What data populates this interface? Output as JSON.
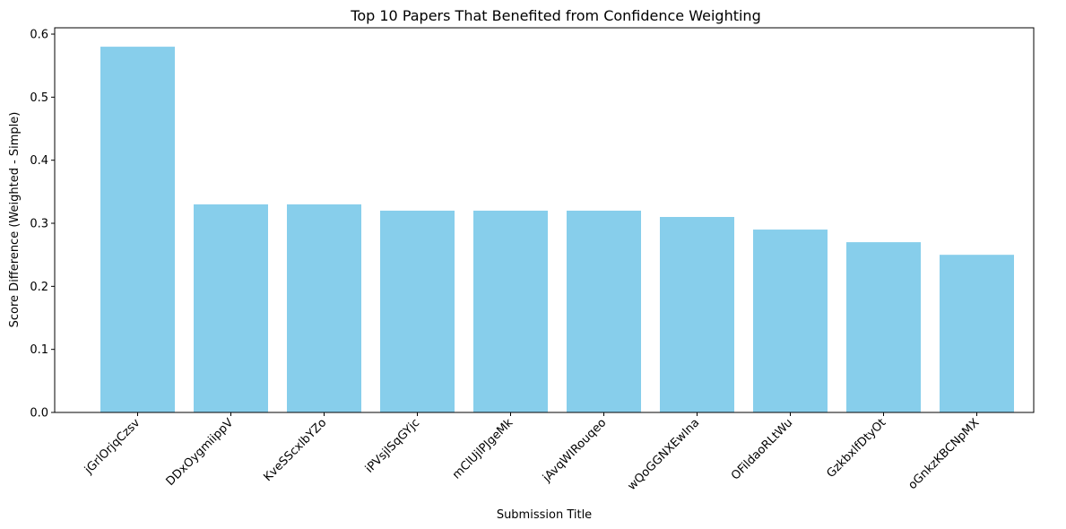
{
  "chart_data": {
    "type": "bar",
    "title": "Top 10 Papers That Benefited from Confidence Weighting",
    "xlabel": "Submission Title",
    "ylabel": "Score Difference (Weighted - Simple)",
    "categories": [
      "jGrlOrjqCzsv",
      "DDxOygmiippV",
      "KveSScxlbYZo",
      "iPVsjlSqGYjc",
      "mClUjlPJgeMk",
      "jAvqWIRouqeo",
      "wQoGGNXEwIna",
      "OFildaoRLtWu",
      "GzkbxlfDtyOt",
      "oGnkzKBCNpMX"
    ],
    "values": [
      0.58,
      0.33,
      0.33,
      0.32,
      0.32,
      0.32,
      0.31,
      0.29,
      0.27,
      0.25
    ],
    "ylim": [
      0,
      0.61
    ],
    "yticks": [
      "0.0",
      "0.1",
      "0.2",
      "0.3",
      "0.4",
      "0.5",
      "0.6"
    ],
    "bar_color": "#87ceeb",
    "grid": false,
    "legend": "none"
  }
}
